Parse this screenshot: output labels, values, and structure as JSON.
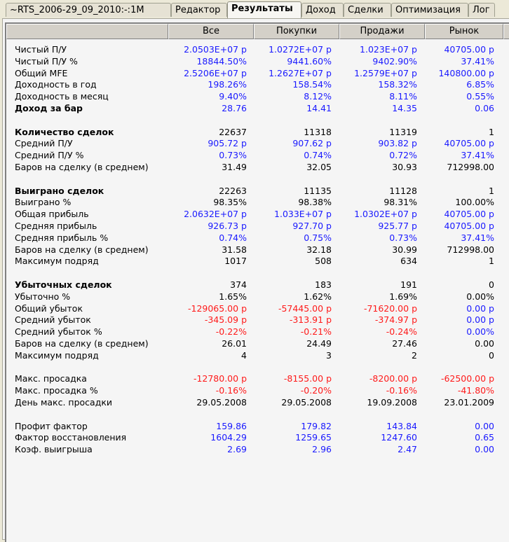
{
  "tabs": [
    "~RTS_2006-29_09_2010:-:1M",
    "Редактор",
    "Результаты",
    "Доход",
    "Сделки",
    "Оптимизация",
    "Лог"
  ],
  "active_tab": 2,
  "columns": [
    "Все",
    "Покупки",
    "Продажи",
    "Рынок"
  ],
  "colors": {
    "b": "#1a1aff",
    "r": "#ff1a1a",
    "k": "#000000"
  },
  "rows": [
    {
      "label": "Чистый П/У",
      "cells": [
        [
          "2.0503E+07 р",
          "b"
        ],
        [
          "1.0272E+07 р",
          "b"
        ],
        [
          "1.023E+07 р",
          "b"
        ],
        [
          "40705.00 р",
          "b"
        ]
      ]
    },
    {
      "label": "Чистый П/У %",
      "cells": [
        [
          "18844.50%",
          "b"
        ],
        [
          "9441.60%",
          "b"
        ],
        [
          "9402.90%",
          "b"
        ],
        [
          "37.41%",
          "b"
        ]
      ]
    },
    {
      "label": "Общий MFE",
      "cells": [
        [
          "2.5206E+07 р",
          "b"
        ],
        [
          "1.2627E+07 р",
          "b"
        ],
        [
          "1.2579E+07 р",
          "b"
        ],
        [
          "140800.00 р",
          "b"
        ]
      ]
    },
    {
      "label": "Доходность в год",
      "cells": [
        [
          "198.26%",
          "b"
        ],
        [
          "158.54%",
          "b"
        ],
        [
          "158.32%",
          "b"
        ],
        [
          "6.85%",
          "b"
        ]
      ]
    },
    {
      "label": "Доходность в месяц",
      "cells": [
        [
          "9.40%",
          "b"
        ],
        [
          "8.12%",
          "b"
        ],
        [
          "8.11%",
          "b"
        ],
        [
          "0.55%",
          "b"
        ]
      ]
    },
    {
      "label": "Доход за бар",
      "bold": true,
      "cells": [
        [
          "28.76",
          "b"
        ],
        [
          "14.41",
          "b"
        ],
        [
          "14.35",
          "b"
        ],
        [
          "0.06",
          "b"
        ]
      ]
    },
    {
      "spacer": true
    },
    {
      "label": "Количество сделок",
      "bold": true,
      "cells": [
        [
          "22637",
          "k"
        ],
        [
          "11318",
          "k"
        ],
        [
          "11319",
          "k"
        ],
        [
          "1",
          "k"
        ]
      ]
    },
    {
      "label": "Средний П/У",
      "cells": [
        [
          "905.72 р",
          "b"
        ],
        [
          "907.62 р",
          "b"
        ],
        [
          "903.82 р",
          "b"
        ],
        [
          "40705.00 р",
          "b"
        ]
      ]
    },
    {
      "label": "Средний П/У %",
      "cells": [
        [
          "0.73%",
          "b"
        ],
        [
          "0.74%",
          "b"
        ],
        [
          "0.72%",
          "b"
        ],
        [
          "37.41%",
          "b"
        ]
      ]
    },
    {
      "label": "Баров на сделку (в среднем)",
      "cells": [
        [
          "31.49",
          "k"
        ],
        [
          "32.05",
          "k"
        ],
        [
          "30.93",
          "k"
        ],
        [
          "712998.00",
          "k"
        ]
      ]
    },
    {
      "spacer": true
    },
    {
      "label": "Выиграно сделок",
      "bold": true,
      "cells": [
        [
          "22263",
          "k"
        ],
        [
          "11135",
          "k"
        ],
        [
          "11128",
          "k"
        ],
        [
          "1",
          "k"
        ]
      ]
    },
    {
      "label": "Выиграно %",
      "cells": [
        [
          "98.35%",
          "k"
        ],
        [
          "98.38%",
          "k"
        ],
        [
          "98.31%",
          "k"
        ],
        [
          "100.00%",
          "k"
        ]
      ]
    },
    {
      "label": "Общая прибыль",
      "cells": [
        [
          "2.0632E+07 р",
          "b"
        ],
        [
          "1.033E+07 р",
          "b"
        ],
        [
          "1.0302E+07 р",
          "b"
        ],
        [
          "40705.00 р",
          "b"
        ]
      ]
    },
    {
      "label": "Средняя прибыль",
      "cells": [
        [
          "926.73 р",
          "b"
        ],
        [
          "927.70 р",
          "b"
        ],
        [
          "925.77 р",
          "b"
        ],
        [
          "40705.00 р",
          "b"
        ]
      ]
    },
    {
      "label": "Средняя прибыль %",
      "cells": [
        [
          "0.74%",
          "b"
        ],
        [
          "0.75%",
          "b"
        ],
        [
          "0.73%",
          "b"
        ],
        [
          "37.41%",
          "b"
        ]
      ]
    },
    {
      "label": "Баров на сделку (в среднем)",
      "cells": [
        [
          "31.58",
          "k"
        ],
        [
          "32.18",
          "k"
        ],
        [
          "30.99",
          "k"
        ],
        [
          "712998.00",
          "k"
        ]
      ]
    },
    {
      "label": "Максимум подряд",
      "cells": [
        [
          "1017",
          "k"
        ],
        [
          "508",
          "k"
        ],
        [
          "634",
          "k"
        ],
        [
          "1",
          "k"
        ]
      ]
    },
    {
      "spacer": true
    },
    {
      "label": "Убыточных сделок",
      "bold": true,
      "cells": [
        [
          "374",
          "k"
        ],
        [
          "183",
          "k"
        ],
        [
          "191",
          "k"
        ],
        [
          "0",
          "k"
        ]
      ]
    },
    {
      "label": "Убыточно %",
      "cells": [
        [
          "1.65%",
          "k"
        ],
        [
          "1.62%",
          "k"
        ],
        [
          "1.69%",
          "k"
        ],
        [
          "0.00%",
          "k"
        ]
      ]
    },
    {
      "label": "Общий убыток",
      "cells": [
        [
          "-129065.00 р",
          "r"
        ],
        [
          "-57445.00 р",
          "r"
        ],
        [
          "-71620.00 р",
          "r"
        ],
        [
          "0.00 р",
          "b"
        ]
      ]
    },
    {
      "label": "Средний убыток",
      "cells": [
        [
          "-345.09 р",
          "r"
        ],
        [
          "-313.91 р",
          "r"
        ],
        [
          "-374.97 р",
          "r"
        ],
        [
          "0.00 р",
          "b"
        ]
      ]
    },
    {
      "label": "Средний убыток %",
      "cells": [
        [
          "-0.22%",
          "r"
        ],
        [
          "-0.21%",
          "r"
        ],
        [
          "-0.24%",
          "r"
        ],
        [
          "0.00%",
          "b"
        ]
      ]
    },
    {
      "label": "Баров на сделку (в среднем)",
      "cells": [
        [
          "26.01",
          "k"
        ],
        [
          "24.49",
          "k"
        ],
        [
          "27.46",
          "k"
        ],
        [
          "0.00",
          "k"
        ]
      ]
    },
    {
      "label": "Максимум подряд",
      "cells": [
        [
          "4",
          "k"
        ],
        [
          "3",
          "k"
        ],
        [
          "2",
          "k"
        ],
        [
          "0",
          "k"
        ]
      ]
    },
    {
      "spacer": true
    },
    {
      "label": "Макс. просадка",
      "cells": [
        [
          "-12780.00 р",
          "r"
        ],
        [
          "-8155.00 р",
          "r"
        ],
        [
          "-8200.00 р",
          "r"
        ],
        [
          "-62500.00 р",
          "r"
        ]
      ]
    },
    {
      "label": "Макс. просадка %",
      "cells": [
        [
          "-0.16%",
          "r"
        ],
        [
          "-0.20%",
          "r"
        ],
        [
          "-0.16%",
          "r"
        ],
        [
          "-41.80%",
          "r"
        ]
      ]
    },
    {
      "label": "День макс. просадки",
      "cells": [
        [
          "29.05.2008",
          "k"
        ],
        [
          "29.05.2008",
          "k"
        ],
        [
          "19.09.2008",
          "k"
        ],
        [
          "23.01.2009",
          "k"
        ]
      ]
    },
    {
      "spacer": true
    },
    {
      "label": "Профит фактор",
      "cells": [
        [
          "159.86",
          "b"
        ],
        [
          "179.82",
          "b"
        ],
        [
          "143.84",
          "b"
        ],
        [
          "0.00",
          "b"
        ]
      ]
    },
    {
      "label": "Фактор восстановления",
      "cells": [
        [
          "1604.29",
          "b"
        ],
        [
          "1259.65",
          "b"
        ],
        [
          "1247.60",
          "b"
        ],
        [
          "0.65",
          "b"
        ]
      ]
    },
    {
      "label": "Коэф. выигрыша",
      "cells": [
        [
          "2.69",
          "b"
        ],
        [
          "2.96",
          "b"
        ],
        [
          "2.47",
          "b"
        ],
        [
          "0.00",
          "b"
        ]
      ]
    }
  ]
}
